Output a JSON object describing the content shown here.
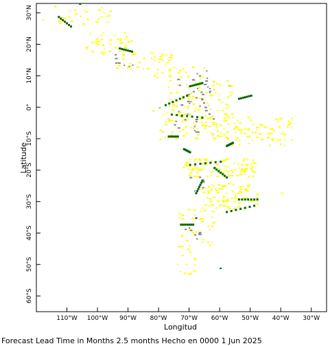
{
  "chart_data": {
    "type": "map",
    "xlabel": "Longitud",
    "ylabel": "Latitude",
    "xlim": [
      -120,
      -25
    ],
    "ylim": [
      -65,
      33
    ],
    "x_ticks": [
      {
        "value": -110,
        "label": "110°W"
      },
      {
        "value": -100,
        "label": "100°W"
      },
      {
        "value": -90,
        "label": "90°W"
      },
      {
        "value": -80,
        "label": "80°W"
      },
      {
        "value": -70,
        "label": "70°W"
      },
      {
        "value": -60,
        "label": "60°W"
      },
      {
        "value": -50,
        "label": "50°W"
      },
      {
        "value": -40,
        "label": "40°W"
      },
      {
        "value": -30,
        "label": "30°W"
      }
    ],
    "y_ticks": [
      {
        "value": 30,
        "label": "30°N"
      },
      {
        "value": 20,
        "label": "20°N"
      },
      {
        "value": 10,
        "label": "10°N"
      },
      {
        "value": 0,
        "label": "0°"
      },
      {
        "value": -10,
        "label": "10°S"
      },
      {
        "value": -20,
        "label": "20°S"
      },
      {
        "value": -30,
        "label": "30°S"
      },
      {
        "value": -40,
        "label": "40°S"
      },
      {
        "value": -50,
        "label": "50°S"
      },
      {
        "value": -60,
        "label": "60°S"
      }
    ],
    "colors": {
      "yellow": "#ffff00",
      "pale_yellow": "#eeee66",
      "green": "#006600",
      "light_green": "#99dd44",
      "gray": "#808080",
      "blue": "#0000cc"
    },
    "patches": [
      {
        "color": "yellow",
        "lon": [
          -118,
          -96
        ],
        "lat": [
          26,
          33
        ],
        "n": 30
      },
      {
        "color": "yellow",
        "lon": [
          -104,
          -88
        ],
        "lat": [
          17,
          24
        ],
        "n": 40
      },
      {
        "color": "yellow",
        "lon": [
          -94,
          -76
        ],
        "lat": [
          12,
          18
        ],
        "n": 40
      },
      {
        "color": "yellow",
        "lon": [
          -77,
          -56
        ],
        "lat": [
          -1,
          9
        ],
        "n": 60
      },
      {
        "color": "yellow",
        "lon": [
          -80,
          -56
        ],
        "lat": [
          -10,
          -1
        ],
        "n": 90
      },
      {
        "color": "yellow",
        "lon": [
          -56,
          -36
        ],
        "lat": [
          -12,
          -3
        ],
        "n": 70
      },
      {
        "color": "yellow",
        "lon": [
          -72,
          -48
        ],
        "lat": [
          -22,
          -16
        ],
        "n": 110
      },
      {
        "color": "yellow",
        "lon": [
          -66,
          -48
        ],
        "lat": [
          -32,
          -24
        ],
        "n": 90
      },
      {
        "color": "yellow",
        "lon": [
          -74,
          -62
        ],
        "lat": [
          -44,
          -32
        ],
        "n": 40
      },
      {
        "color": "yellow",
        "lon": [
          -74,
          -68
        ],
        "lat": [
          -53,
          -44
        ],
        "n": 14
      },
      {
        "color": "yellow",
        "lon": [
          -82,
          -64
        ],
        "lat": [
          9,
          13
        ],
        "n": 20
      },
      {
        "color": "pale_yellow",
        "lon": [
          -80,
          -60
        ],
        "lat": [
          -10,
          10
        ],
        "n": 18
      },
      {
        "color": "gray",
        "lon": [
          -75,
          -62
        ],
        "lat": [
          -8,
          12
        ],
        "n": 45
      },
      {
        "color": "gray",
        "lon": [
          -95,
          -88
        ],
        "lat": [
          13,
          18
        ],
        "n": 8
      },
      {
        "color": "gray",
        "lon": [
          -72,
          -66
        ],
        "lat": [
          -42,
          -38
        ],
        "n": 8
      },
      {
        "color": "gray",
        "lon": [
          -70,
          -64
        ],
        "lat": [
          -28,
          -22
        ],
        "n": 6
      }
    ],
    "green_strokes": [
      [
        [
          -113,
          29
        ],
        [
          -109,
          26
        ]
      ],
      [
        [
          -93,
          19
        ],
        [
          -89,
          18
        ]
      ],
      [
        [
          -78,
          1
        ],
        [
          -71,
          4
        ]
      ],
      [
        [
          -70,
          7
        ],
        [
          -66,
          8
        ]
      ],
      [
        [
          -76,
          -2
        ],
        [
          -66,
          -3
        ]
      ],
      [
        [
          -77,
          -9
        ],
        [
          -74,
          -9
        ]
      ],
      [
        [
          -72,
          -13
        ],
        [
          -70,
          -14
        ]
      ],
      [
        [
          -70,
          -18
        ],
        [
          -60,
          -17
        ]
      ],
      [
        [
          -62,
          -19
        ],
        [
          -58,
          -22
        ]
      ],
      [
        [
          -68,
          -27
        ],
        [
          -66,
          -23
        ]
      ],
      [
        [
          -54,
          -29
        ],
        [
          -48,
          -29
        ]
      ],
      [
        [
          -58,
          -33
        ],
        [
          -49,
          -31
        ]
      ],
      [
        [
          -73,
          -37
        ],
        [
          -69,
          -37
        ]
      ],
      [
        [
          -54,
          3
        ],
        [
          -50,
          4
        ]
      ],
      [
        [
          -58,
          -12
        ],
        [
          -56,
          -11
        ]
      ]
    ],
    "extras": [
      {
        "color": "light_green",
        "lon": -57,
        "lat": 7
      },
      {
        "color": "light_green",
        "lon": -80,
        "lat": 0
      },
      {
        "color": "blue",
        "lon": -68,
        "lat": -35
      },
      {
        "color": "green",
        "lon": -106,
        "lat": 33
      },
      {
        "color": "green",
        "lon": -60,
        "lat": -51
      },
      {
        "color": "yellow",
        "lon": -82,
        "lat": -1
      },
      {
        "color": "yellow",
        "lon": -40,
        "lat": -27
      }
    ]
  },
  "footer": "Forecast Lead Time in Months 2.5 months Hecho en 0000 1 Jun 2025"
}
